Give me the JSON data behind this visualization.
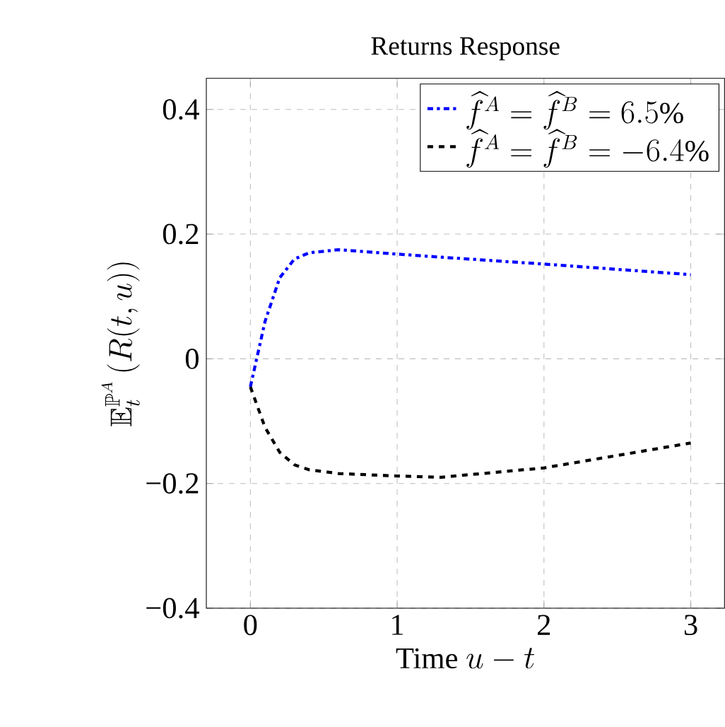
{
  "chart_data": {
    "type": "line",
    "title": "Returns Response",
    "xlabel": "\\text{Time }u-t",
    "ylabel": "\\mathbb{E}_t^{\\mathbb{P}^A}\\left(R(t,u)\\right)",
    "x": [
      0,
      0.1,
      0.2,
      0.3,
      0.4,
      0.6,
      1,
      1.3,
      2,
      3
    ],
    "series": [
      {
        "name": "\\widehat{f}^A=\\widehat{f}^B=6.5\\%",
        "color": "#0000ff",
        "line_style": "dashdot",
        "values": [
          -0.045,
          0.06,
          0.13,
          0.16,
          0.17,
          0.175,
          0.168,
          0.163,
          0.152,
          0.135
        ]
      },
      {
        "name": "\\widehat{f}^A=\\widehat{f}^B=-6.4\\%",
        "color": "#000000",
        "line_style": "dashed",
        "values": [
          -0.045,
          -0.11,
          -0.15,
          -0.17,
          -0.178,
          -0.184,
          -0.188,
          -0.19,
          -0.175,
          -0.135
        ]
      }
    ],
    "xlim": [
      -0.3,
      3.23
    ],
    "ylim": [
      -0.4,
      0.45
    ],
    "xticks": [
      0,
      1,
      2,
      3
    ],
    "yticks": [
      {
        "value": -0.4,
        "label": "−0.4"
      },
      {
        "value": -0.2,
        "label": "−0.2"
      },
      0,
      0.2,
      0.4
    ],
    "grid": true,
    "legend": "top right"
  }
}
